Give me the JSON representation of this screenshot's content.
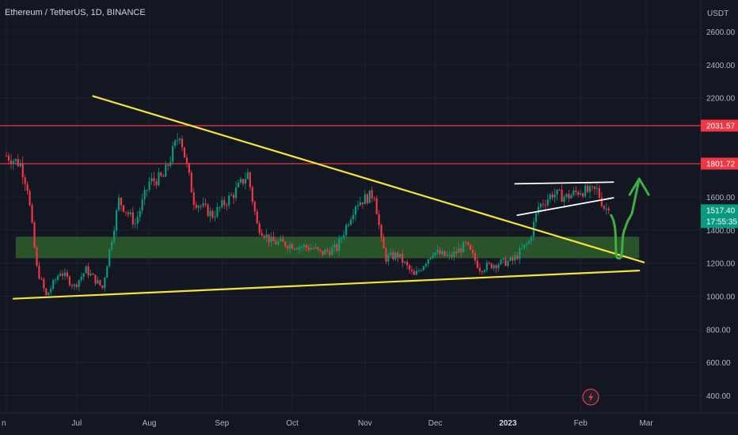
{
  "header": {
    "symbol_title": "Ethereum / TetherUS, 1D, BINANCE"
  },
  "price_axis": {
    "unit": "USDT",
    "ticks": [
      "2600.00",
      "2400.00",
      "2200.00",
      "1800.00",
      "1600.00",
      "1400.00",
      "1200.00",
      "1000.00",
      "800.00",
      "600.00",
      "400.00"
    ],
    "tick_values": [
      2600,
      2400,
      2200,
      1800,
      1600,
      1400,
      1200,
      1000,
      800,
      600,
      400
    ],
    "badges": [
      {
        "value": 2031.57,
        "label": "2031.57",
        "color": "#f23645"
      },
      {
        "value": 1801.72,
        "label": "1801.72",
        "color": "#f23645"
      },
      {
        "value": 1517.4,
        "label": "1517.40",
        "sub": "17:55:35",
        "color": "#089981"
      }
    ]
  },
  "time_axis": {
    "labels": [
      "n",
      "Jul",
      "Aug",
      "Sep",
      "Oct",
      "Nov",
      "Dec",
      "2023",
      "Feb",
      "Mar"
    ],
    "bold": [
      "2023"
    ]
  },
  "colors": {
    "background": "#131722",
    "up": "#089981",
    "down": "#f23645",
    "trendline": "#f5e33b",
    "hline": "#f23645",
    "zone": "#2f5a2a",
    "arrow": "#3fae49",
    "grid": "#1e222d",
    "axis_text": "#b2b5be"
  },
  "icons": {
    "bottom_marker": "lightning-icon"
  },
  "chart_data": {
    "type": "candlestick",
    "title": "Ethereum / TetherUS, 1D, BINANCE",
    "y_unit": "USDT",
    "ylim": [
      300,
      2780
    ],
    "x_range": [
      "2022-06-01",
      "2023-03-06"
    ],
    "horizontal_levels": [
      2031.57,
      1801.72
    ],
    "current_price": 1517.4,
    "countdown": "17:55:35",
    "support_zone": {
      "from": 1230,
      "to": 1360,
      "x_from": "2022-06-05",
      "x_to": "2023-02-26"
    },
    "trendlines": [
      {
        "name": "descending",
        "points": [
          [
            "2022-07-08",
            2210
          ],
          [
            "2023-02-28",
            1205
          ]
        ]
      },
      {
        "name": "ascending",
        "points": [
          [
            "2022-06-04",
            985
          ],
          [
            "2023-02-26",
            1155
          ]
        ]
      },
      {
        "name": "channel-top",
        "points": [
          [
            "2023-01-04",
            1680
          ],
          [
            "2023-02-15",
            1690
          ]
        ]
      },
      {
        "name": "channel-bottom",
        "points": [
          [
            "2023-01-05",
            1490
          ],
          [
            "2023-02-15",
            1595
          ]
        ]
      }
    ],
    "projection_path": [
      [
        "2023-02-14",
        1490
      ],
      [
        "2023-02-17",
        1230
      ],
      [
        "2023-02-20",
        1410
      ],
      [
        "2023-02-23",
        1505
      ],
      [
        "2023-02-26",
        1710
      ]
    ],
    "anchors": [
      [
        "2022-06-01",
        1850
      ],
      [
        "2022-06-07",
        1800
      ],
      [
        "2022-06-10",
        1660
      ],
      [
        "2022-06-14",
        1170
      ],
      [
        "2022-06-18",
        1000
      ],
      [
        "2022-06-24",
        1150
      ],
      [
        "2022-06-30",
        1060
      ],
      [
        "2022-07-05",
        1160
      ],
      [
        "2022-07-12",
        1050
      ],
      [
        "2022-07-19",
        1580
      ],
      [
        "2022-07-26",
        1440
      ],
      [
        "2022-08-01",
        1690
      ],
      [
        "2022-08-07",
        1720
      ],
      [
        "2022-08-14",
        1990
      ],
      [
        "2022-08-20",
        1580
      ],
      [
        "2022-08-28",
        1490
      ],
      [
        "2022-09-06",
        1620
      ],
      [
        "2022-09-12",
        1740
      ],
      [
        "2022-09-16",
        1430
      ],
      [
        "2022-09-22",
        1330
      ],
      [
        "2022-10-01",
        1310
      ],
      [
        "2022-10-10",
        1290
      ],
      [
        "2022-10-13",
        1260
      ],
      [
        "2022-10-20",
        1290
      ],
      [
        "2022-10-28",
        1560
      ],
      [
        "2022-11-05",
        1620
      ],
      [
        "2022-11-08",
        1330
      ],
      [
        "2022-11-10",
        1230
      ],
      [
        "2022-11-15",
        1250
      ],
      [
        "2022-11-22",
        1120
      ],
      [
        "2022-11-30",
        1270
      ],
      [
        "2022-12-07",
        1235
      ],
      [
        "2022-12-14",
        1310
      ],
      [
        "2022-12-20",
        1170
      ],
      [
        "2022-12-28",
        1200
      ],
      [
        "2023-01-03",
        1215
      ],
      [
        "2023-01-10",
        1330
      ],
      [
        "2023-01-14",
        1540
      ],
      [
        "2023-01-20",
        1620
      ],
      [
        "2023-01-26",
        1600
      ],
      [
        "2023-02-01",
        1640
      ],
      [
        "2023-02-05",
        1630
      ],
      [
        "2023-02-08",
        1640
      ],
      [
        "2023-02-11",
        1540
      ],
      [
        "2023-02-13",
        1517.4
      ]
    ]
  }
}
